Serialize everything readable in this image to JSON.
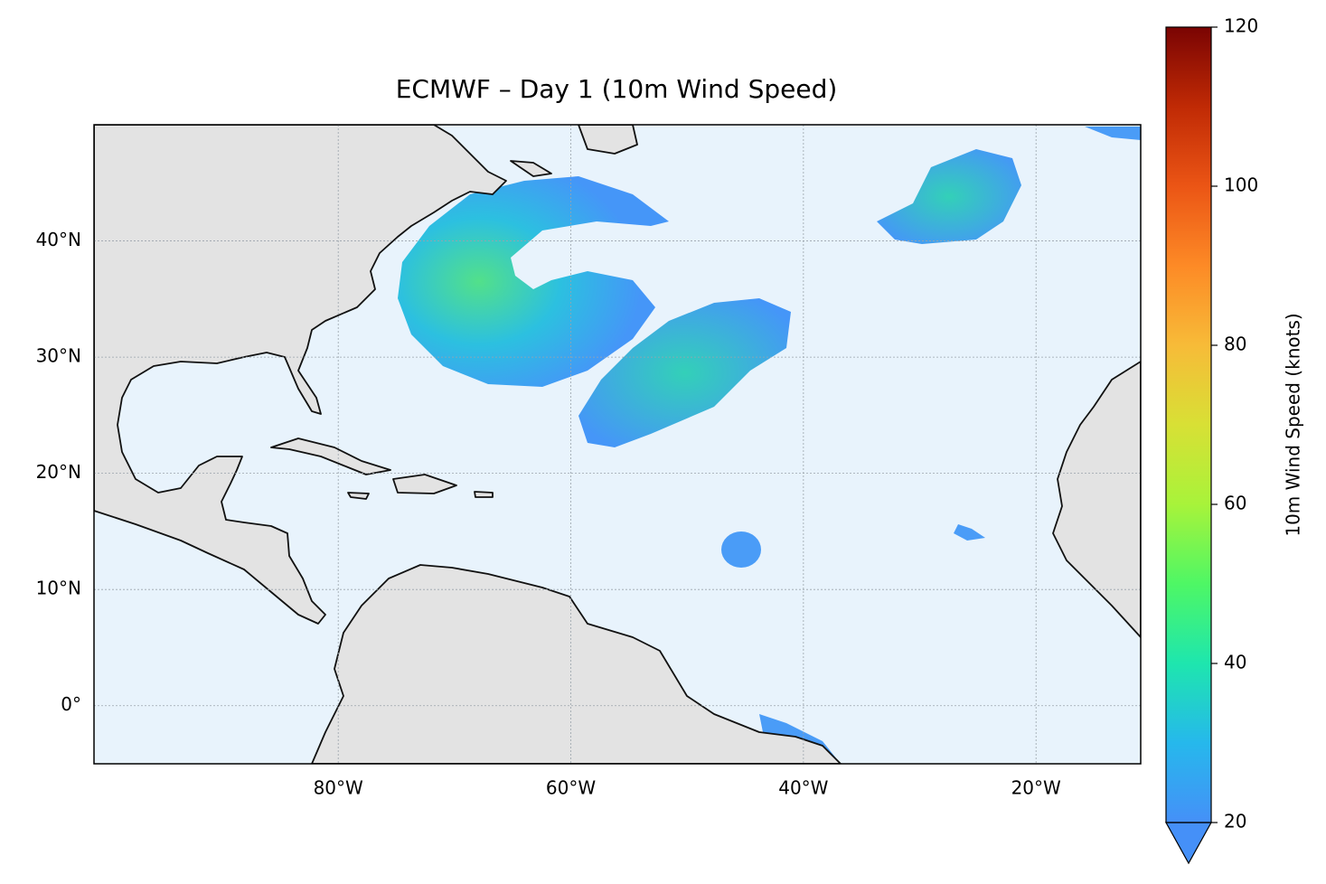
{
  "chart_data": {
    "type": "map",
    "title": "ECMWF – Day 1 (10m Wind Speed)",
    "xlim": [
      -101,
      -11
    ],
    "ylim": [
      -5,
      50
    ],
    "xticks": [
      {
        "value": -80,
        "label": "80°W"
      },
      {
        "value": -60,
        "label": "60°W"
      },
      {
        "value": -40,
        "label": "40°W"
      },
      {
        "value": -20,
        "label": "20°W"
      }
    ],
    "yticks": [
      {
        "value": 0,
        "label": "0°"
      },
      {
        "value": 10,
        "label": "10°N"
      },
      {
        "value": 20,
        "label": "20°N"
      },
      {
        "value": 30,
        "label": "30°N"
      },
      {
        "value": 40,
        "label": "40°N"
      }
    ],
    "grid": true,
    "colorbar": {
      "label": "10m Wind Speed (knots)",
      "lim": [
        20,
        120
      ],
      "ticks": [
        20,
        40,
        60,
        80,
        100,
        120
      ],
      "colors": [
        "#4590f8",
        "#26b8ec",
        "#1ee6ae",
        "#4ef765",
        "#a8f33a",
        "#d8e035",
        "#f7bb38",
        "#fd8a26",
        "#eb5515",
        "#c02a05",
        "#7a0403"
      ]
    }
  }
}
